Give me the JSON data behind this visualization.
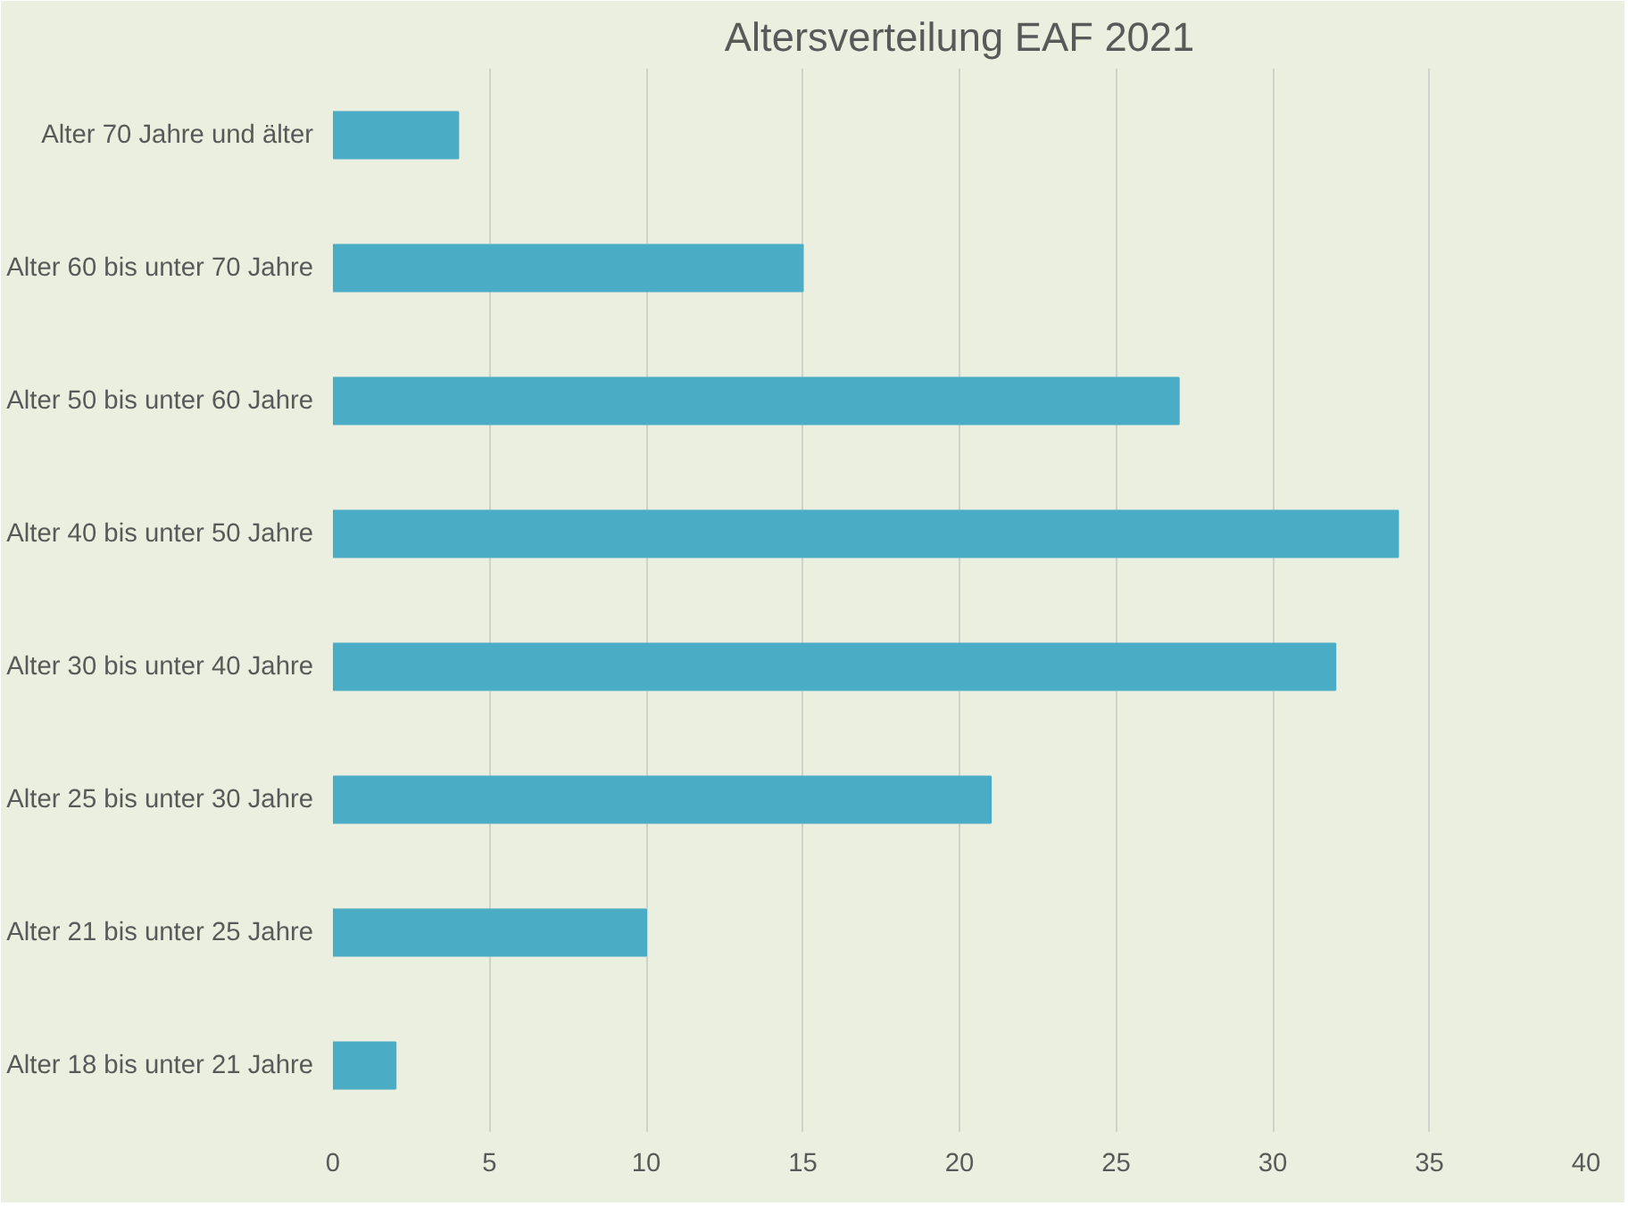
{
  "chart_data": {
    "type": "bar",
    "orientation": "horizontal",
    "title": "Altersverteilung EAF 2021",
    "categories": [
      "Alter 70 Jahre und älter",
      "Alter 60 bis unter 70 Jahre",
      "Alter 50 bis unter 60 Jahre",
      "Alter 40 bis unter 50 Jahre",
      "Alter 30 bis unter 40 Jahre",
      "Alter 25 bis unter 30 Jahre",
      "Alter 21 bis unter 25 Jahre",
      "Alter 18 bis unter 21 Jahre"
    ],
    "values": [
      4,
      15,
      27,
      34,
      32,
      21,
      10,
      2
    ],
    "color": "#4bacc6",
    "xlim": [
      0,
      40
    ],
    "xticks": [
      0,
      5,
      10,
      15,
      20,
      25,
      30,
      35,
      40
    ],
    "grid": "x"
  }
}
